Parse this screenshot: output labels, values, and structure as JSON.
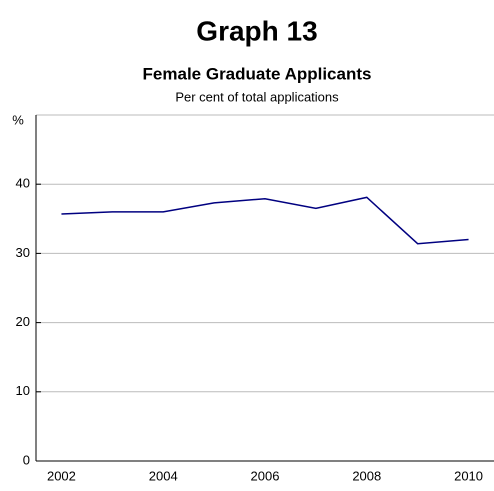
{
  "chart_data": {
    "type": "line",
    "title": "Graph 13",
    "subtitle": "Female Graduate Applicants",
    "note": "Per cent of total applications",
    "y_unit": "%",
    "x": [
      2002,
      2003,
      2004,
      2005,
      2006,
      2007,
      2008,
      2009,
      2010
    ],
    "series": [
      {
        "name": "Female Graduate Applicants",
        "color": "#000080",
        "values": [
          35.7,
          36.0,
          36.0,
          37.3,
          37.9,
          36.5,
          38.1,
          31.4,
          32.0
        ]
      }
    ],
    "xlim": [
      2001.5,
      2010.5
    ],
    "xticks": [
      2002,
      2004,
      2006,
      2008,
      2010
    ],
    "ylim": [
      0,
      50
    ],
    "yticks": [
      0,
      10,
      20,
      30,
      40
    ],
    "grid": true
  }
}
